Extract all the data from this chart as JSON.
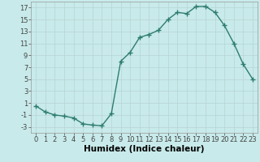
{
  "x": [
    0,
    1,
    2,
    3,
    4,
    5,
    6,
    7,
    8,
    9,
    10,
    11,
    12,
    13,
    14,
    15,
    16,
    17,
    18,
    19,
    20,
    21,
    22,
    23
  ],
  "y": [
    0.5,
    -0.5,
    -1.0,
    -1.2,
    -1.5,
    -2.5,
    -2.7,
    -2.8,
    -0.8,
    8.0,
    9.5,
    12.0,
    12.5,
    13.2,
    15.0,
    16.2,
    16.0,
    17.2,
    17.2,
    16.2,
    14.0,
    11.0,
    7.5,
    5.0
  ],
  "line_color": "#2e7d6e",
  "marker": "D",
  "marker_size": 2.0,
  "bg_color": "#c8eaea",
  "grid_color": "#b8d4d4",
  "xlabel": "Humidex (Indice chaleur)",
  "xlabel_fontsize": 7.5,
  "yticks": [
    -3,
    -1,
    1,
    3,
    5,
    7,
    9,
    11,
    13,
    15,
    17
  ],
  "xticks": [
    0,
    1,
    2,
    3,
    4,
    5,
    6,
    7,
    8,
    9,
    10,
    11,
    12,
    13,
    14,
    15,
    16,
    17,
    18,
    19,
    20,
    21,
    22,
    23
  ],
  "ylim": [
    -4,
    18
  ],
  "xlim": [
    -0.5,
    23.5
  ],
  "tick_fontsize": 6.0,
  "line_width": 1.0,
  "title": ""
}
